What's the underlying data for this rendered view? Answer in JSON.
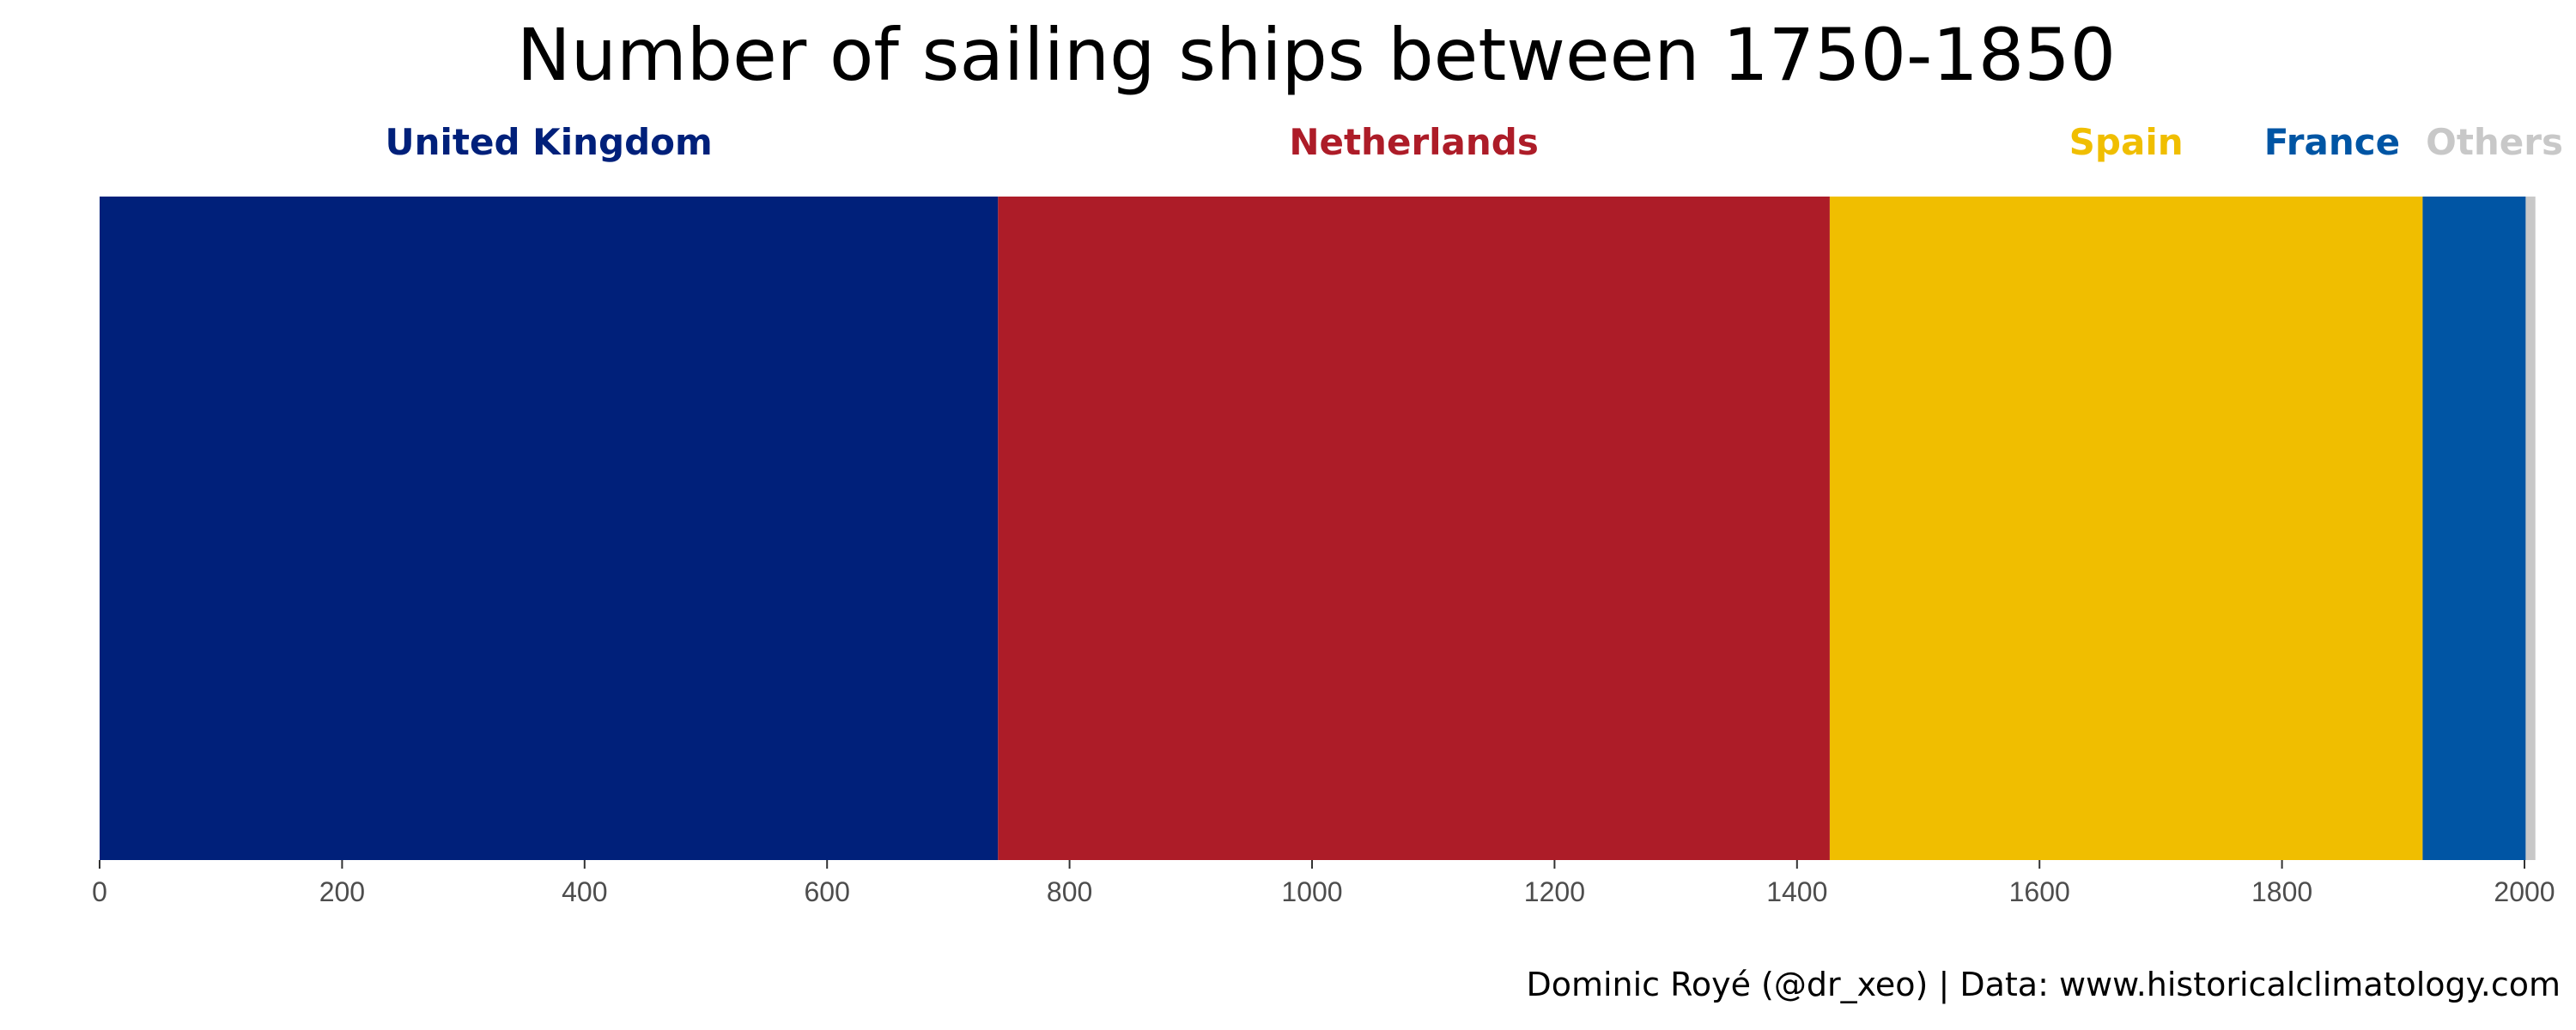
{
  "chart_data": {
    "type": "bar",
    "orientation": "horizontal-stacked",
    "title": "Number of sailing ships between 1750-1850",
    "caption": "Dominic Royé (@dr_xeo) | Data: www.historicalclimatology.com",
    "xlabel": "",
    "ylabel": "",
    "xlim": [
      0,
      2000
    ],
    "x_ticks": [
      0,
      200,
      400,
      600,
      800,
      1000,
      1200,
      1400,
      1600,
      1800,
      2000
    ],
    "grid": false,
    "legend": "labels above segments",
    "series": [
      {
        "name": "United Kingdom",
        "value": 741,
        "color": "#00207a"
      },
      {
        "name": "Netherlands",
        "value": 686,
        "color": "#ad1c28"
      },
      {
        "name": "Spain",
        "value": 489,
        "color": "#f0be00"
      },
      {
        "name": "France",
        "value": 85,
        "color": "#0055a4"
      },
      {
        "name": "Others",
        "value": 8,
        "color": "#c8c8c8"
      }
    ]
  }
}
